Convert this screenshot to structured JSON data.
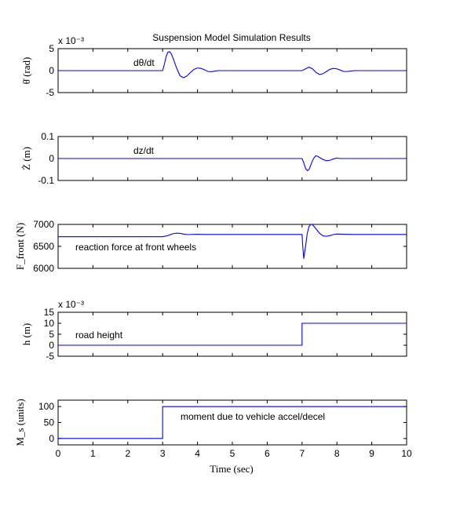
{
  "figure": {
    "title": "Suspension Model Simulation Results",
    "xlabel": "Time (sec)",
    "x_ticks": [
      0,
      1,
      2,
      3,
      4,
      5,
      6,
      7,
      8,
      9,
      10
    ],
    "line_color": "#0000ff"
  },
  "chart_data": [
    {
      "type": "line",
      "ylabel": "θ̇ (rad)",
      "annotation": "dθ/dt",
      "exponent_label": "x 10⁻³",
      "xlim": [
        0,
        10
      ],
      "ylim": [
        -5,
        5
      ],
      "y_ticks": [
        -5,
        0,
        5
      ],
      "x": [
        0,
        3.0,
        3.05,
        3.1,
        3.15,
        3.2,
        3.25,
        3.3,
        3.4,
        3.5,
        3.6,
        3.7,
        3.8,
        3.9,
        4.0,
        4.1,
        4.2,
        4.3,
        4.4,
        4.5,
        4.6,
        4.7,
        5.0,
        7.0,
        7.1,
        7.2,
        7.3,
        7.4,
        7.5,
        7.6,
        7.7,
        7.8,
        7.9,
        8.0,
        8.1,
        8.2,
        8.3,
        8.4,
        8.5,
        8.6,
        10
      ],
      "y": [
        0,
        0,
        1.5,
        3.2,
        4.2,
        4.3,
        3.8,
        2.8,
        0.6,
        -1.2,
        -1.6,
        -1.2,
        -0.4,
        0.3,
        0.6,
        0.5,
        0.2,
        -0.2,
        -0.25,
        -0.1,
        0,
        0,
        0,
        0,
        0.4,
        0.8,
        0.4,
        -0.4,
        -0.9,
        -0.7,
        -0.2,
        0.3,
        0.5,
        0.4,
        0.1,
        -0.2,
        -0.2,
        -0.1,
        0,
        0,
        0
      ]
    },
    {
      "type": "line",
      "ylabel": "Ż (m)",
      "annotation": "dz/dt",
      "xlim": [
        0,
        10
      ],
      "ylim": [
        -0.1,
        0.1
      ],
      "y_ticks": [
        -0.1,
        0,
        0.1
      ],
      "x": [
        0,
        7.0,
        7.05,
        7.1,
        7.15,
        7.2,
        7.25,
        7.3,
        7.35,
        7.4,
        7.45,
        7.5,
        7.6,
        7.7,
        7.8,
        7.9,
        8.0,
        8.1,
        8.2,
        10
      ],
      "y": [
        0,
        0,
        -0.02,
        -0.045,
        -0.055,
        -0.05,
        -0.03,
        -0.01,
        0.005,
        0.012,
        0.01,
        0.005,
        -0.005,
        -0.01,
        -0.008,
        -0.002,
        0.002,
        0,
        0,
        0
      ]
    },
    {
      "type": "line",
      "ylabel": "F_front (N)",
      "annotation": "reaction force at front wheels",
      "xlim": [
        0,
        10
      ],
      "ylim": [
        6000,
        7000
      ],
      "y_ticks": [
        6000,
        6500,
        7000
      ],
      "x": [
        0,
        3.0,
        3.1,
        3.2,
        3.3,
        3.4,
        3.5,
        3.6,
        3.7,
        3.8,
        4.0,
        4.2,
        4.5,
        7.0,
        7.02,
        7.05,
        7.1,
        7.15,
        7.2,
        7.25,
        7.3,
        7.4,
        7.5,
        7.6,
        7.7,
        7.8,
        7.9,
        8.0,
        8.2,
        8.5,
        10
      ],
      "y": [
        6720,
        6720,
        6735,
        6760,
        6790,
        6800,
        6795,
        6780,
        6770,
        6770,
        6775,
        6772,
        6772,
        6772,
        6500,
        6220,
        6500,
        6800,
        6950,
        7000,
        6995,
        6900,
        6800,
        6740,
        6730,
        6745,
        6770,
        6780,
        6775,
        6772,
        6772
      ]
    },
    {
      "type": "line",
      "ylabel": "h (m)",
      "annotation": "road height",
      "exponent_label": "x 10⁻³",
      "xlim": [
        0,
        10
      ],
      "ylim": [
        -5,
        15
      ],
      "y_ticks": [
        -5,
        0,
        5,
        10,
        15
      ],
      "x": [
        0,
        7.0,
        7.0,
        10
      ],
      "y": [
        0,
        0,
        10,
        10
      ]
    },
    {
      "type": "line",
      "ylabel": "M_s (units)",
      "annotation": "moment due to vehicle accel/decel",
      "xlim": [
        0,
        10
      ],
      "ylim": [
        -20,
        120
      ],
      "y_ticks": [
        0,
        50,
        100
      ],
      "x": [
        0,
        3.0,
        3.0,
        10
      ],
      "y": [
        0,
        0,
        100,
        100
      ]
    }
  ]
}
